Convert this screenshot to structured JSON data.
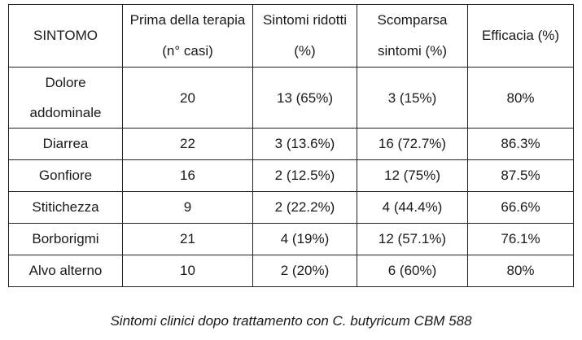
{
  "table": {
    "headers": [
      "SINTOMO",
      "Prima della terapia (n° casi)",
      "Sintomi ridotti (%)",
      "Scomparsa sintomi (%)",
      "Efficacia (%)"
    ],
    "rows": [
      [
        "Dolore addominale",
        "20",
        "13 (65%)",
        "3 (15%)",
        "80%"
      ],
      [
        "Diarrea",
        "22",
        "3 (13.6%)",
        "16 (72.7%)",
        "86.3%"
      ],
      [
        "Gonfiore",
        "16",
        "2 (12.5%)",
        "12 (75%)",
        "87.5%"
      ],
      [
        "Stitichezza",
        "9",
        "2 (22.2%)",
        "4 (44.4%)",
        "66.6%"
      ],
      [
        "Borborigmi",
        "21",
        "4 (19%)",
        "12 (57.1%)",
        "76.1%"
      ],
      [
        "Alvo alterno",
        "10",
        "2 (20%)",
        "6 (60%)",
        "80%"
      ]
    ]
  },
  "caption": "Sintomi clinici dopo trattamento con C. butyricum CBM 588"
}
